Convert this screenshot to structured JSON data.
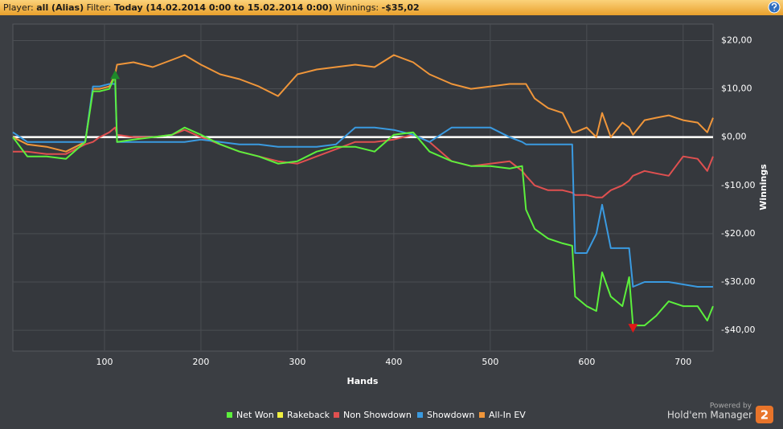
{
  "header": {
    "player_label": "Player:",
    "player": "all (Alias)",
    "filter_label": "Filter:",
    "filter": "Today (14.02.2014 0:00 to 15.02.2014 0:00)",
    "winnings_label": "Winnings:",
    "winnings": "-$35,02"
  },
  "chart_data": {
    "type": "line",
    "xlabel": "Hands",
    "ylabel": "Winnings",
    "x": [
      5,
      20,
      40,
      60,
      80,
      88,
      95,
      105,
      111,
      113,
      130,
      150,
      170,
      183,
      200,
      220,
      240,
      260,
      280,
      300,
      320,
      340,
      360,
      380,
      400,
      420,
      437,
      460,
      480,
      500,
      520,
      533,
      537,
      546,
      560,
      575,
      585,
      588,
      600,
      610,
      616,
      625,
      637,
      644,
      648,
      660,
      672,
      685,
      700,
      715,
      725,
      731
    ],
    "series": [
      {
        "name": "Net Won",
        "color": "#5cf03c",
        "values": [
          0,
          -4,
          -4,
          -4.5,
          -1,
          9.5,
          9.5,
          10,
          12.7,
          -1,
          -0.5,
          0,
          0.5,
          2,
          0.5,
          -1.5,
          -3,
          -4,
          -5.5,
          -5,
          -3,
          -2,
          -2,
          -3,
          0.5,
          1,
          -3,
          -5,
          -6,
          -6,
          -6.5,
          -6,
          -15,
          -19,
          -21,
          -22,
          -22.5,
          -33,
          -35,
          -36,
          -28,
          -33,
          -35,
          -29,
          -39,
          -39,
          -37,
          -34,
          -35,
          -35,
          -38,
          -35
        ]
      },
      {
        "name": "Rakeback",
        "color": "#f0f040",
        "values": [
          0,
          0,
          0,
          0,
          0,
          0,
          0,
          0,
          0,
          0,
          0,
          0,
          0,
          0,
          0,
          0,
          0,
          0,
          0,
          0,
          0,
          0,
          0,
          0,
          0,
          0,
          0,
          0,
          0,
          0,
          0,
          0,
          0,
          0,
          0,
          0,
          0,
          0,
          0,
          0,
          0,
          0,
          0,
          0,
          0,
          0,
          0,
          0,
          0,
          0,
          0,
          0
        ]
      },
      {
        "name": "Non Showdown",
        "color": "#e05050",
        "values": [
          -3,
          -3,
          -3.5,
          -3.5,
          -1.5,
          -1,
          0,
          1,
          2,
          0.5,
          0,
          0,
          0.5,
          1.5,
          0,
          -1.5,
          -3,
          -4,
          -5,
          -5.5,
          -4,
          -2.5,
          -1,
          -1,
          -0.5,
          0.5,
          -1,
          -5,
          -6,
          -5.5,
          -5,
          -7,
          -8,
          -10,
          -11,
          -11,
          -11.5,
          -12,
          -12,
          -12.5,
          -12.5,
          -11,
          -10,
          -9,
          -8,
          -7,
          -7.5,
          -8,
          -4,
          -4.5,
          -7,
          -4
        ]
      },
      {
        "name": "Showdown",
        "color": "#3a9ae0",
        "values": [
          1,
          -1,
          -1,
          -1,
          -1,
          10.5,
          10.5,
          11,
          11,
          -1,
          -1,
          -1,
          -1,
          -1,
          -0.5,
          -1,
          -1.5,
          -1.5,
          -2,
          -2,
          -2,
          -1.5,
          2,
          2,
          1.5,
          0.5,
          -1,
          2,
          2,
          2,
          0,
          -1,
          -1.5,
          -1.5,
          -1.5,
          -1.5,
          -1.5,
          -24,
          -24,
          -20,
          -14,
          -23,
          -23,
          -23,
          -31,
          -30,
          -30,
          -30,
          -30.5,
          -31,
          -31,
          -31
        ]
      },
      {
        "name": "All-In EV",
        "color": "#f0963a",
        "values": [
          0,
          -1.5,
          -2,
          -3,
          -1,
          10,
          10,
          10.5,
          13,
          15,
          15.5,
          14.5,
          16,
          17,
          15,
          13,
          12,
          10.5,
          8.5,
          13,
          14,
          14.5,
          15,
          14.5,
          17,
          15.5,
          13,
          11,
          10,
          10.5,
          11,
          11,
          11,
          8,
          6,
          5,
          1,
          1,
          2,
          0,
          5,
          0,
          3,
          2,
          0.5,
          3.5,
          4,
          4.5,
          3.5,
          3,
          1,
          4
        ]
      }
    ],
    "xlim": [
      5,
      731
    ],
    "xticks": [
      100,
      200,
      300,
      400,
      500,
      600,
      700
    ],
    "ylim": [
      -44.3,
      23.4
    ],
    "yticks": [
      {
        "value": 20,
        "label": "$20,00"
      },
      {
        "value": 10,
        "label": "$10,00"
      },
      {
        "value": 0,
        "label": "$0,00"
      },
      {
        "value": -10,
        "label": "-$10,00"
      },
      {
        "value": -20,
        "label": "-$20,00"
      },
      {
        "value": -30,
        "label": "-$30,00"
      },
      {
        "value": -40,
        "label": "-$40,00"
      }
    ],
    "grid": true,
    "legend": "bottom"
  },
  "logo": {
    "powered": "Powered by",
    "name": "Hold'em Manager",
    "version": "2"
  }
}
